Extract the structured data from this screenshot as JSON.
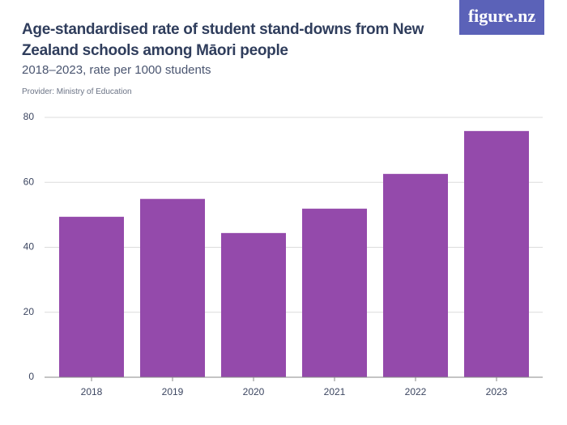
{
  "chart_data": {
    "type": "bar",
    "title": "Age-standardised rate of student stand-downs from New Zealand schools among Māori people",
    "subtitle": "2018–2023, rate per 1000 students",
    "provider": "Provider: Ministry of Education",
    "logo": "figure.nz",
    "categories": [
      "2018",
      "2019",
      "2020",
      "2021",
      "2022",
      "2023"
    ],
    "values": [
      49.4,
      54.9,
      44.4,
      51.9,
      62.6,
      75.8
    ],
    "color": "#944aab",
    "ylim": [
      0,
      80
    ],
    "yticks": [
      0,
      20,
      40,
      60,
      80
    ],
    "grid": true
  }
}
